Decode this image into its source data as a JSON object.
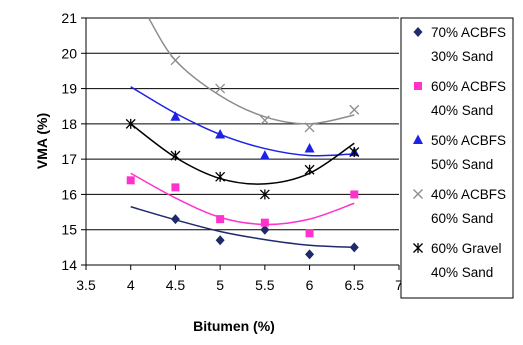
{
  "chart_data": {
    "type": "scatter",
    "xlabel": "Bitumen (%)",
    "ylabel": "VMA (%)",
    "xlim": [
      3.5,
      7
    ],
    "ylim": [
      14,
      21
    ],
    "xticks": [
      "3.5",
      "4",
      "4.5",
      "5",
      "5.5",
      "6",
      "6.5",
      "7"
    ],
    "yticks": [
      "14",
      "15",
      "16",
      "17",
      "18",
      "19",
      "20",
      "21"
    ],
    "grid": "horizontal",
    "legend_position": "right",
    "series": [
      {
        "name": "70% ACBFS 30% Sand",
        "label_lines": [
          "70% ACBFS",
          "30% Sand"
        ],
        "color": "#1F2A6B",
        "marker": "diamond",
        "points": [
          [
            4.5,
            15.3
          ],
          [
            5.0,
            14.7
          ],
          [
            5.5,
            15.0
          ],
          [
            6.0,
            14.3
          ],
          [
            6.5,
            14.5
          ]
        ],
        "trend": [
          [
            4.0,
            15.65
          ],
          [
            4.5,
            15.28
          ],
          [
            5.0,
            14.95
          ],
          [
            5.5,
            14.72
          ],
          [
            6.0,
            14.56
          ],
          [
            6.5,
            14.5
          ]
        ]
      },
      {
        "name": "60% ACBFS 40% Sand",
        "label_lines": [
          "60% ACBFS",
          "40% Sand"
        ],
        "color": "#FF33CC",
        "marker": "square",
        "points": [
          [
            4.0,
            16.4
          ],
          [
            4.5,
            16.2
          ],
          [
            5.0,
            15.3
          ],
          [
            5.5,
            15.2
          ],
          [
            6.0,
            14.9
          ],
          [
            6.5,
            16.0
          ]
        ],
        "trend": [
          [
            4.0,
            16.6
          ],
          [
            4.5,
            15.9
          ],
          [
            5.0,
            15.35
          ],
          [
            5.5,
            15.15
          ],
          [
            6.0,
            15.3
          ],
          [
            6.5,
            15.75
          ]
        ]
      },
      {
        "name": "50% ACBFS 50% Sand",
        "label_lines": [
          "50% ACBFS",
          "50% Sand"
        ],
        "color": "#1E22E6",
        "marker": "triangle",
        "points": [
          [
            4.5,
            18.2
          ],
          [
            5.0,
            17.7
          ],
          [
            5.5,
            17.1
          ],
          [
            6.0,
            17.3
          ],
          [
            6.5,
            17.2
          ]
        ],
        "trend": [
          [
            4.0,
            19.05
          ],
          [
            4.5,
            18.3
          ],
          [
            5.0,
            17.7
          ],
          [
            5.5,
            17.3
          ],
          [
            6.0,
            17.1
          ],
          [
            6.5,
            17.15
          ]
        ]
      },
      {
        "name": "40% ACBFS 60% Sand",
        "label_lines": [
          "40% ACBFS",
          "60% Sand"
        ],
        "color": "#8C8C8C",
        "marker": "x",
        "points": [
          [
            4.5,
            19.8
          ],
          [
            5.0,
            19.0
          ],
          [
            5.5,
            18.1
          ],
          [
            6.0,
            17.9
          ],
          [
            6.5,
            18.4
          ]
        ],
        "trend": [
          [
            4.2,
            21.0
          ],
          [
            4.5,
            19.8
          ],
          [
            5.0,
            18.8
          ],
          [
            5.5,
            18.2
          ],
          [
            6.0,
            18.0
          ],
          [
            6.5,
            18.25
          ]
        ]
      },
      {
        "name": "60% Gravel 40% Sand",
        "label_lines": [
          "60% Gravel",
          "40% Sand"
        ],
        "color": "#000000",
        "marker": "star",
        "points": [
          [
            4.0,
            18.0
          ],
          [
            4.5,
            17.1
          ],
          [
            5.0,
            16.5
          ],
          [
            5.5,
            16.0
          ],
          [
            6.0,
            16.7
          ],
          [
            6.5,
            17.2
          ]
        ],
        "trend": [
          [
            4.0,
            18.0
          ],
          [
            4.5,
            17.05
          ],
          [
            5.0,
            16.45
          ],
          [
            5.5,
            16.3
          ],
          [
            6.0,
            16.6
          ],
          [
            6.5,
            17.45
          ]
        ]
      }
    ]
  }
}
